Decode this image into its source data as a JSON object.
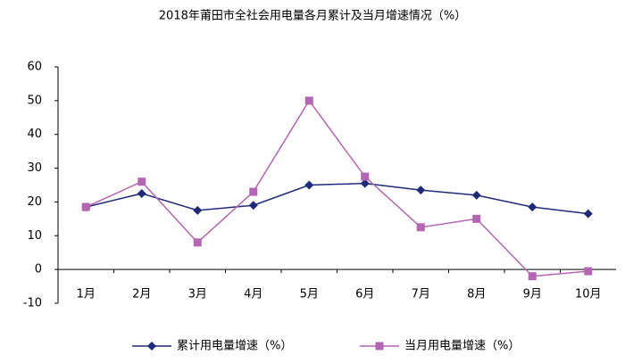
{
  "chart_data": {
    "type": "line",
    "title": "2018年莆田市全社会用电量各月累计及当月增速情况（%）",
    "categories": [
      "1月",
      "2月",
      "3月",
      "4月",
      "5月",
      "6月",
      "7月",
      "8月",
      "9月",
      "10月"
    ],
    "series": [
      {
        "name": "累计用电量增速（%）",
        "color": "#1f2a7a",
        "marker": "diamond",
        "values": [
          18.5,
          22.5,
          17.5,
          19,
          25,
          25.5,
          23.5,
          22,
          18.5,
          16.5
        ]
      },
      {
        "name": "当月用电量增速（%）",
        "color": "#b466b4",
        "marker": "square",
        "values": [
          18.5,
          26,
          8,
          23,
          50,
          27.5,
          12.5,
          15,
          -2,
          -0.5
        ]
      }
    ],
    "ylim": [
      -10,
      60
    ],
    "yticks": [
      -10,
      0,
      10,
      20,
      30,
      40,
      50,
      60
    ],
    "grid": false,
    "legend": "bottom"
  }
}
